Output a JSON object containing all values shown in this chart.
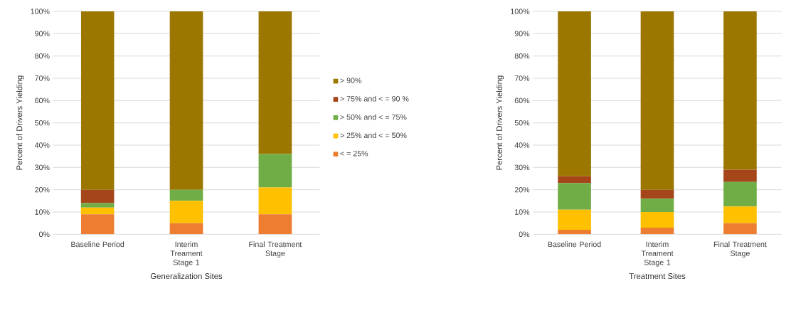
{
  "chart_data": [
    {
      "type": "bar",
      "stacked": true,
      "xlabel": "Generalization Sites",
      "ylabel": "Percent of Drivers Yielding",
      "categories": [
        "Baseline Period",
        "Interim Treament Stage 1",
        "Final Treatment Stage"
      ],
      "series": [
        {
          "name": "< = 25%",
          "color": "#ed7d31",
          "values": [
            9,
            5,
            9
          ]
        },
        {
          "name": "> 25% and < = 50%",
          "color": "#ffc000",
          "values": [
            3,
            10,
            12
          ]
        },
        {
          "name": "> 50% and < = 75%",
          "color": "#70ad47",
          "values": [
            2,
            5,
            15
          ]
        },
        {
          "name": "> 75% and < = 90 %",
          "color": "#a5461a",
          "values": [
            6,
            0,
            0
          ]
        },
        {
          "name": "> 90%",
          "color": "#9c7700",
          "values": [
            80,
            80,
            64
          ]
        }
      ],
      "ylim": [
        0,
        100
      ],
      "yticks": [
        {
          "value": 0,
          "label": "0%"
        },
        {
          "value": 10,
          "label": "10%"
        },
        {
          "value": 20,
          "label": "20%"
        },
        {
          "value": 30,
          "label": "30%"
        },
        {
          "value": 40,
          "label": "40%"
        },
        {
          "value": 50,
          "label": "50%"
        },
        {
          "value": 60,
          "label": "60%"
        },
        {
          "value": 70,
          "label": "70%"
        },
        {
          "value": 80,
          "label": "80%"
        },
        {
          "value": 90,
          "label": "90%"
        },
        {
          "value": 100,
          "label": "100%"
        }
      ],
      "grid": "y",
      "legend": "right"
    },
    {
      "type": "bar",
      "stacked": true,
      "xlabel": "Treatment Sites",
      "ylabel": "Percent of Drivers Yielding",
      "categories": [
        "Baseline Period",
        "Interim Treament Stage 1",
        "Final Treatment Stage"
      ],
      "series": [
        {
          "color": "#ed7d31",
          "values": [
            2,
            3,
            5
          ]
        },
        {
          "color": "#ffc000",
          "values": [
            9,
            7,
            7.5
          ]
        },
        {
          "color": "#70ad47",
          "values": [
            12,
            6,
            11
          ]
        },
        {
          "color": "#a5461a",
          "values": [
            3,
            4,
            5.5
          ]
        },
        {
          "color": "#9c7700",
          "values": [
            74,
            80,
            71
          ]
        }
      ],
      "ylim": [
        0,
        100
      ],
      "yticks": [
        {
          "value": 0,
          "label": "0%"
        },
        {
          "value": 10,
          "label": "10%"
        },
        {
          "value": 20,
          "label": "20%"
        },
        {
          "value": 30,
          "label": "30%"
        },
        {
          "value": 40,
          "label": "40%"
        },
        {
          "value": 50,
          "label": "50%"
        },
        {
          "value": 60,
          "label": "60%"
        },
        {
          "value": 70,
          "label": "70%"
        },
        {
          "value": 80,
          "label": "80%"
        },
        {
          "value": 90,
          "label": "90%"
        },
        {
          "value": 100,
          "label": "100%"
        }
      ],
      "grid": "y"
    }
  ]
}
